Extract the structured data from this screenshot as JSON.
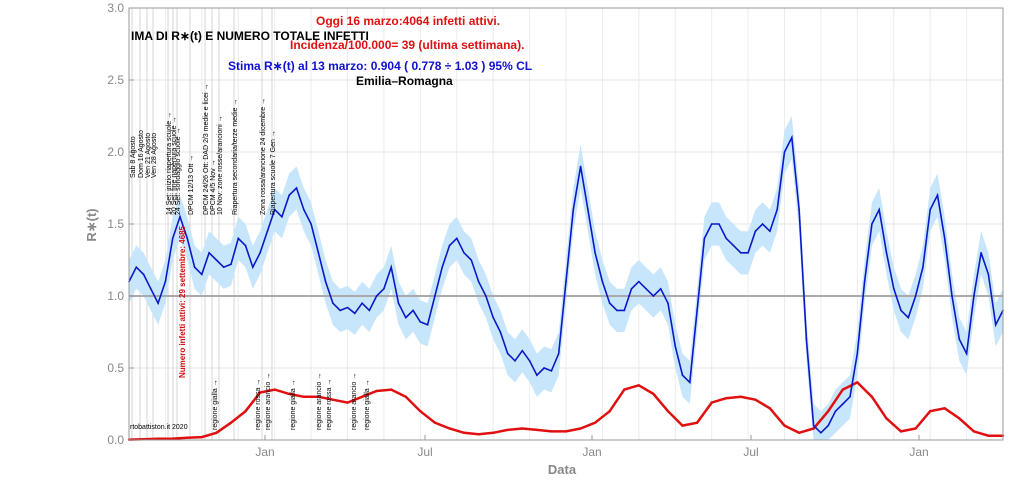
{
  "chart_data": {
    "type": "line",
    "title": "IMA DI R∗(t) E NUMERO TOTALE INFETTI",
    "xlabel": "Data",
    "ylabel": "R∗(t)",
    "ylim": [
      0,
      3.0
    ],
    "yticks": [
      "0.0",
      "0.5",
      "1.0",
      "1.5",
      "2.0",
      "2.5",
      "3.0"
    ],
    "xticks": [
      "Jan",
      "Jul",
      "Jan",
      "Jul",
      "Jan"
    ],
    "reference_line": 1.0,
    "grid": true,
    "annotations": {
      "today": "Oggi 16 marzo:4064 infetti attivi.",
      "incidence": "Incidenza/100.000= 39 (ultima settimana).",
      "estimate": "Stima R∗(t) al 13 marzo: 0.904 ( 0.778 ÷ 1.03 ) 95% CL",
      "region": "Emilia–Romagna",
      "peak_label": "Numero infetti attivi: 29 settembre: 4685",
      "credit": "rtobattiston.it 2020"
    },
    "events_top": [
      "Sab 8 Agosto",
      "Dom 16 Agosto",
      "Ven 21 Agosto",
      "Ven 28 Agosto",
      "14 Set: inizio riapertura scuole →",
      "20 Set: fine riapertura scuole →",
      "24 Set: sondaggio scuole →",
      "DPCM 12/13 Ott →",
      "DPCM 24/26 Ott: DAD 2/3 medie e licei →",
      "DPCM 4/5 Nov →",
      "10 Nov: zone rosse/arancioni →",
      "Riapertura secondaria/terze medie →",
      "Zona rossa/arancione 24 dicembre →",
      "Riapertura scuole 7 Gen →"
    ],
    "events_bottom": [
      "regione gialla →",
      "regione rossa →",
      "regione arancio →",
      "regione gialla →",
      "regione arancio →",
      "regione rossa →",
      "regione arancio →",
      "regione gialla →"
    ],
    "series": [
      {
        "name": "R∗(t)",
        "color": "#0a18c8",
        "band_color": "#c8e6fb",
        "x": [
          0,
          10,
          20,
          30,
          40,
          50,
          60,
          70,
          80,
          90,
          100,
          110,
          120,
          130,
          140,
          150,
          160,
          170,
          180,
          190,
          200,
          210,
          220,
          230,
          240,
          250,
          260,
          270,
          280,
          290,
          300,
          310,
          320,
          330,
          340,
          350,
          360,
          370,
          380,
          390,
          400,
          410,
          420,
          430,
          440,
          450,
          460,
          470,
          480,
          490,
          500,
          510,
          520,
          530,
          540,
          550,
          560,
          570,
          580,
          590,
          600,
          610,
          620,
          630,
          640,
          650,
          660,
          670,
          680,
          690,
          700,
          710,
          720,
          730,
          740,
          750,
          760,
          770,
          780,
          790,
          800,
          810,
          820,
          830,
          840,
          850,
          860,
          870,
          880,
          890,
          900,
          910,
          920,
          930,
          940,
          950,
          960,
          970,
          980,
          990,
          1000,
          1010,
          1020,
          1030,
          1040,
          1050,
          1060,
          1070,
          1080,
          1090,
          1100,
          1110,
          1120,
          1130,
          1140,
          1150,
          1160,
          1170,
          1180,
          1190,
          1200
        ],
        "values": [
          1.1,
          1.2,
          1.15,
          1.05,
          0.95,
          1.1,
          1.4,
          1.55,
          1.4,
          1.2,
          1.15,
          1.3,
          1.25,
          1.2,
          1.22,
          1.4,
          1.35,
          1.2,
          1.3,
          1.45,
          1.6,
          1.55,
          1.7,
          1.75,
          1.6,
          1.5,
          1.3,
          1.1,
          0.95,
          0.9,
          0.92,
          0.88,
          0.95,
          0.9,
          1.0,
          1.05,
          1.2,
          0.95,
          0.85,
          0.9,
          0.82,
          0.8,
          1.0,
          1.2,
          1.35,
          1.4,
          1.3,
          1.25,
          1.1,
          1.0,
          0.85,
          0.75,
          0.6,
          0.55,
          0.62,
          0.55,
          0.45,
          0.5,
          0.48,
          0.6,
          1.1,
          1.6,
          1.9,
          1.6,
          1.3,
          1.1,
          0.95,
          0.9,
          0.9,
          1.05,
          1.1,
          1.05,
          1.0,
          1.05,
          0.95,
          0.65,
          0.45,
          0.4,
          0.9,
          1.4,
          1.5,
          1.5,
          1.4,
          1.35,
          1.3,
          1.3,
          1.45,
          1.5,
          1.45,
          1.6,
          2.0,
          2.1,
          1.6,
          0.7,
          0.1,
          0.05,
          0.1,
          0.2,
          0.25,
          0.3,
          0.6,
          1.1,
          1.5,
          1.6,
          1.3,
          1.05,
          0.9,
          0.85,
          1.0,
          1.2,
          1.6,
          1.7,
          1.4,
          1.0,
          0.7,
          0.6,
          1.0,
          1.3,
          1.15,
          0.8,
          0.9
        ]
      },
      {
        "name": "Numero infetti attivi",
        "color": "#e01010",
        "x": [
          0,
          20,
          40,
          60,
          80,
          100,
          120,
          140,
          160,
          180,
          200,
          220,
          240,
          260,
          280,
          300,
          320,
          340,
          360,
          380,
          400,
          420,
          440,
          460,
          480,
          500,
          520,
          540,
          560,
          580,
          600,
          620,
          640,
          660,
          680,
          700,
          720,
          740,
          760,
          780,
          800,
          820,
          840,
          860,
          880,
          900,
          920,
          940,
          960,
          980,
          1000,
          1020,
          1040,
          1060,
          1080,
          1100,
          1120,
          1140,
          1160,
          1180,
          1200
        ],
        "values": [
          0.003,
          0.005,
          0.008,
          0.01,
          0.015,
          0.02,
          0.05,
          0.12,
          0.2,
          0.33,
          0.35,
          0.32,
          0.3,
          0.3,
          0.28,
          0.26,
          0.3,
          0.34,
          0.35,
          0.3,
          0.2,
          0.12,
          0.08,
          0.05,
          0.04,
          0.05,
          0.07,
          0.08,
          0.07,
          0.06,
          0.06,
          0.08,
          0.12,
          0.2,
          0.35,
          0.38,
          0.32,
          0.2,
          0.1,
          0.12,
          0.26,
          0.29,
          0.3,
          0.28,
          0.22,
          0.1,
          0.05,
          0.08,
          0.2,
          0.35,
          0.4,
          0.3,
          0.15,
          0.06,
          0.08,
          0.2,
          0.22,
          0.15,
          0.06,
          0.03,
          0.03
        ]
      }
    ]
  }
}
